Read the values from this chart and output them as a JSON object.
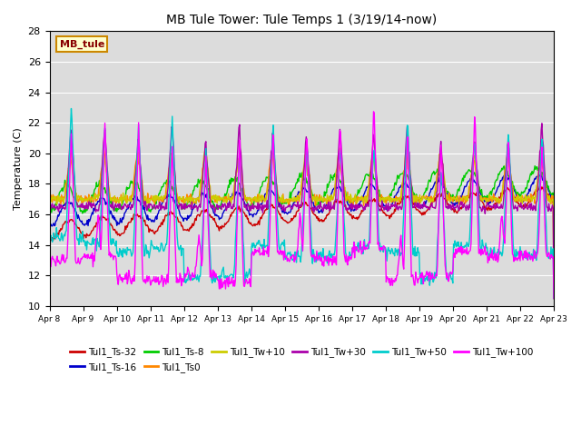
{
  "title": "MB Tule Tower: Tule Temps 1 (3/19/14-now)",
  "ylabel": "Temperature (C)",
  "ylim": [
    10,
    28
  ],
  "yticks": [
    10,
    12,
    14,
    16,
    18,
    20,
    22,
    24,
    26,
    28
  ],
  "bg_color": "#dcdcdc",
  "fig_color": "#ffffff",
  "station_label": "MB_tule",
  "legend_entries": [
    {
      "label": "Tul1_Ts-32",
      "color": "#cc0000"
    },
    {
      "label": "Tul1_Ts-16",
      "color": "#0000cc"
    },
    {
      "label": "Tul1_Ts-8",
      "color": "#00cc00"
    },
    {
      "label": "Tul1_Ts0",
      "color": "#ff8800"
    },
    {
      "label": "Tul1_Tw+10",
      "color": "#cccc00"
    },
    {
      "label": "Tul1_Tw+30",
      "color": "#aa00aa"
    },
    {
      "label": "Tul1_Tw+50",
      "color": "#00cccc"
    },
    {
      "label": "Tul1_Tw+100",
      "color": "#ff00ff"
    }
  ],
  "xtick_labels": [
    "Apr 8",
    "Apr 9",
    "Apr 10",
    "Apr 11",
    "Apr 12",
    "Apr 13",
    "Apr 14",
    "Apr 15",
    "Apr 16",
    "Apr 17",
    "Apr 18",
    "Apr 19",
    "Apr 20",
    "Apr 21",
    "Apr 22",
    "Apr 23"
  ],
  "n_days": 15,
  "pts_per_day": 48
}
